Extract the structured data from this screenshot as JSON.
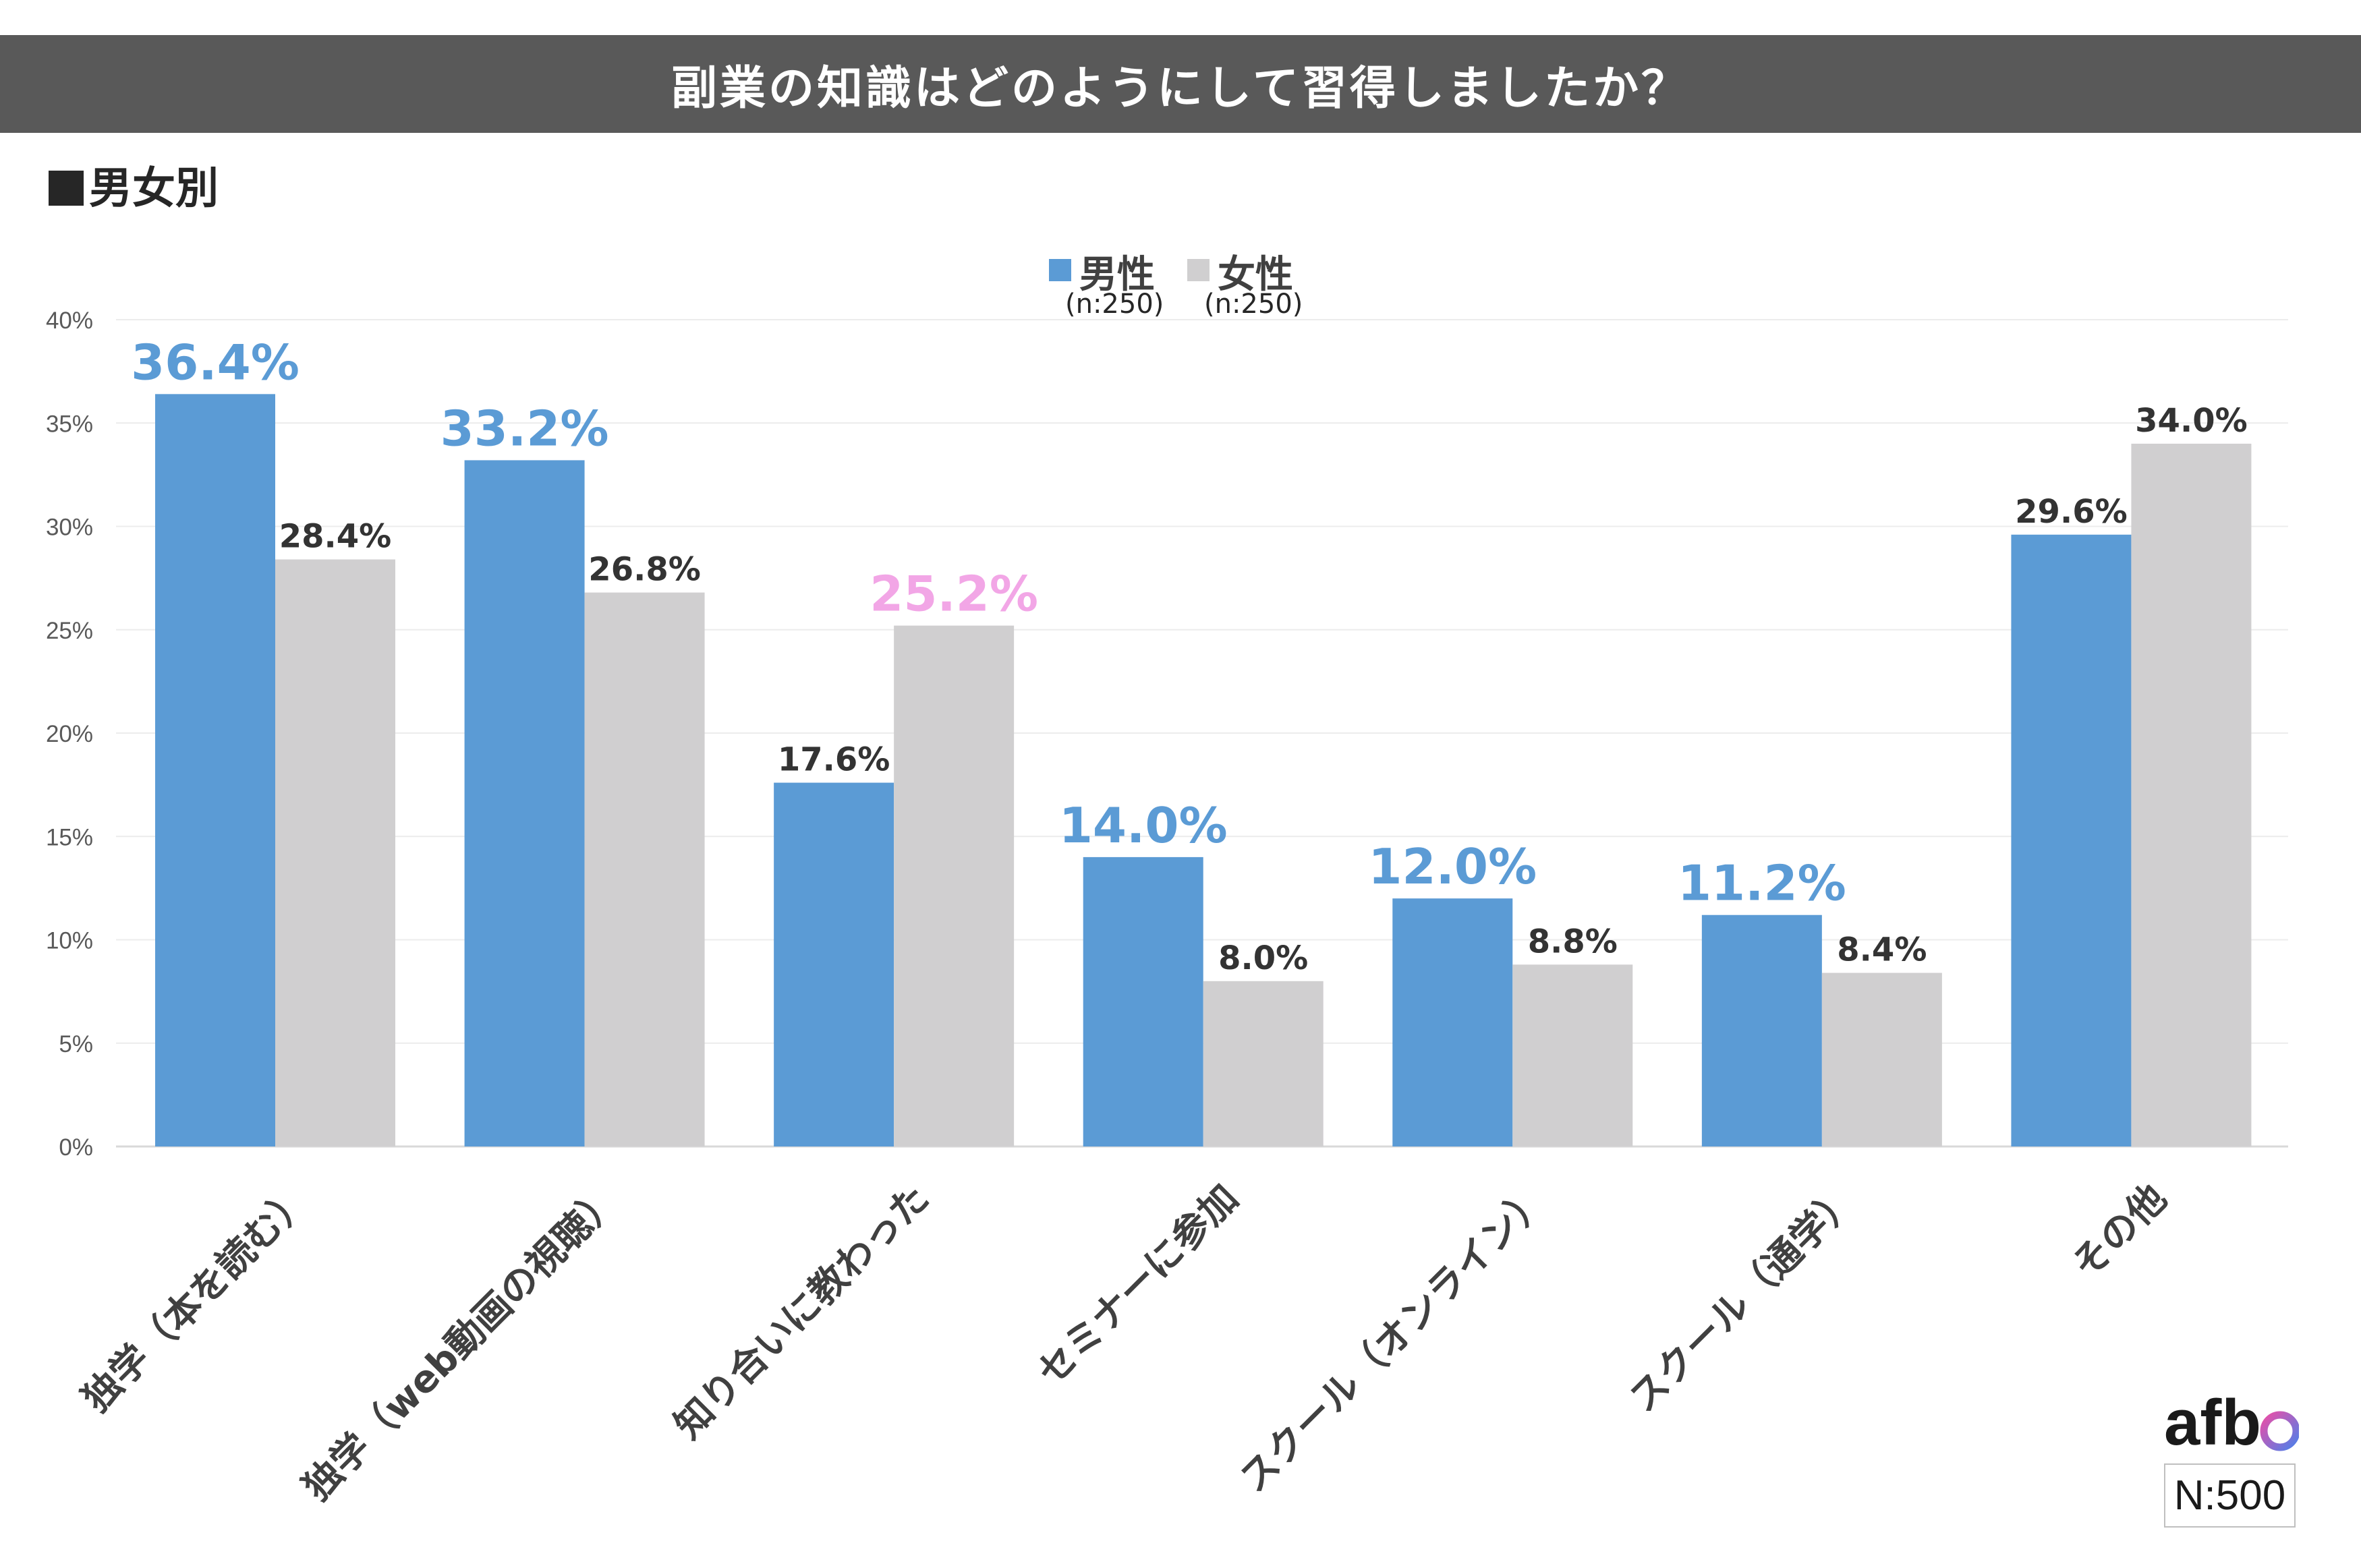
{
  "title": "副業の知識はどのようにして習得しましたか？",
  "section_label": "男女別",
  "legend": [
    {
      "name": "男性",
      "n": "(n:250)",
      "color": "#5b9bd5"
    },
    {
      "name": "女性",
      "n": "(n:250)",
      "color": "#d0cfd0"
    }
  ],
  "logo_text": "afb",
  "sample_size": "N:500",
  "chart_data": {
    "type": "bar",
    "title": "副業の知識はどのようにして習得しましたか？",
    "xlabel": "",
    "ylabel": "",
    "ylim": [
      0,
      40
    ],
    "yticks": [
      "0%",
      "5%",
      "10%",
      "15%",
      "20%",
      "25%",
      "30%",
      "35%",
      "40%"
    ],
    "grid": true,
    "legend_position": "top-center",
    "categories": [
      "独学（本を読む）",
      "独学（web動画の視聴）",
      "知り合いに教わった",
      "セミナーに参加",
      "スクール（オンライン）",
      "スクール（通学）",
      "その他"
    ],
    "series": [
      {
        "name": "男性",
        "color": "#5b9bd5",
        "values": [
          36.4,
          33.2,
          17.6,
          14.0,
          12.0,
          11.2,
          29.6
        ],
        "labels": [
          "36.4%",
          "33.2%",
          "17.6%",
          "14.0%",
          "12.0%",
          "11.2%",
          "29.6%"
        ],
        "highlight": [
          true,
          true,
          false,
          true,
          true,
          true,
          false
        ]
      },
      {
        "name": "女性",
        "color": "#d0cfd0",
        "values": [
          28.4,
          26.8,
          25.2,
          8.0,
          8.8,
          8.4,
          34.0
        ],
        "labels": [
          "28.4%",
          "26.8%",
          "25.2%",
          "8.0%",
          "8.8%",
          "8.4%",
          "34.0%"
        ],
        "highlight": [
          false,
          false,
          true,
          false,
          false,
          false,
          false
        ]
      }
    ],
    "highlight_colors": [
      "#5b9bd5",
      "#f2a6e6"
    ]
  }
}
